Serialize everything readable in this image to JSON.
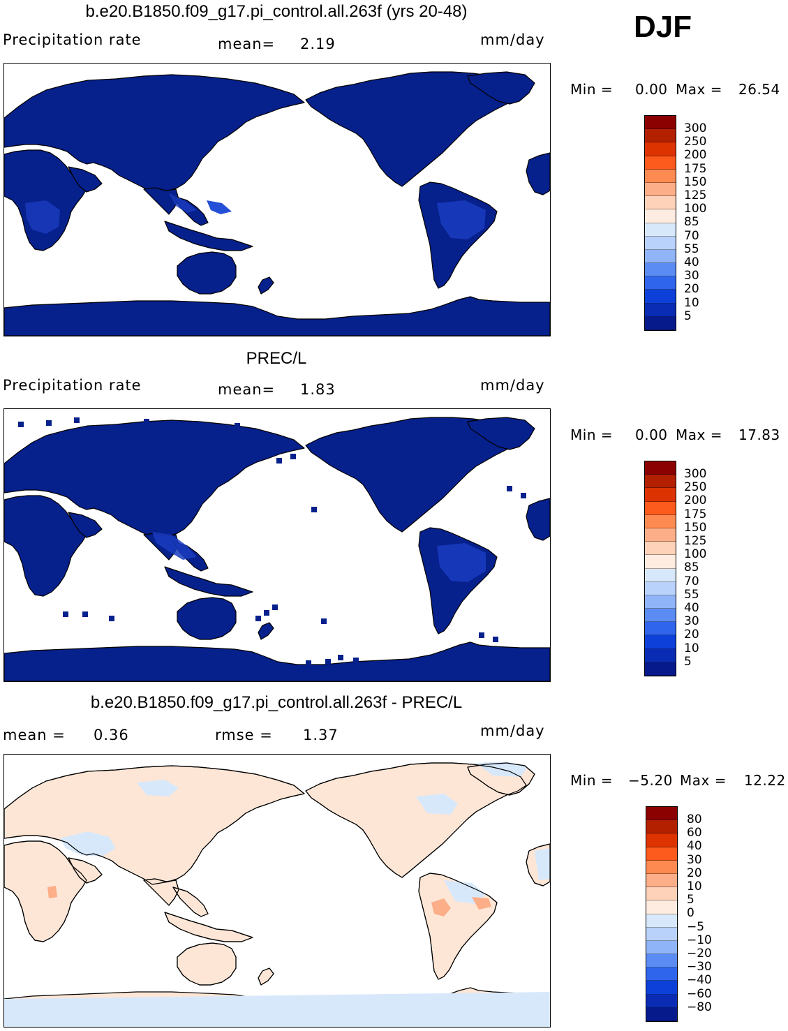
{
  "season": "DJF",
  "panels": [
    {
      "title": "b.e20.B1850.f09_g17.pi_control.all.263f (yrs 20-48)",
      "left_label": "Precipitation  rate",
      "mean_label": "mean=",
      "mean_value": "2.19",
      "units": "mm/day",
      "min_label": "Min  =",
      "min_value": "0.00",
      "max_label": "Max  =",
      "max_value": "26.54",
      "colorbar_labels": [
        "300",
        "250",
        "200",
        "175",
        "150",
        "125",
        "100",
        "85",
        "70",
        "55",
        "40",
        "30",
        "20",
        "10",
        "5"
      ],
      "colorbar_colors": [
        "#8b0000",
        "#b22000",
        "#dd3300",
        "#fd5a1e",
        "#fd8a50",
        "#fcae88",
        "#fdd2b8",
        "#ffece0",
        "#d8e8fb",
        "#b8d2fb",
        "#90b4f8",
        "#5a8cf4",
        "#2f64ec",
        "#0d40d8",
        "#0a2cb4",
        "#061a8c"
      ],
      "fill_color": "#06208c",
      "map_style": "smooth"
    },
    {
      "title": "PREC/L",
      "left_label": "Precipitation  rate",
      "mean_label": "mean=",
      "mean_value": "1.83",
      "units": "mm/day",
      "min_label": "Min  =",
      "min_value": "0.00",
      "max_label": "Max  =",
      "max_value": "17.83",
      "colorbar_labels": [
        "300",
        "250",
        "200",
        "175",
        "150",
        "125",
        "100",
        "85",
        "70",
        "55",
        "40",
        "30",
        "20",
        "10",
        "5"
      ],
      "colorbar_colors": [
        "#8b0000",
        "#b22000",
        "#dd3300",
        "#fd5a1e",
        "#fd8a50",
        "#fcae88",
        "#fdd2b8",
        "#ffece0",
        "#d8e8fb",
        "#b8d2fb",
        "#90b4f8",
        "#5a8cf4",
        "#2f64ec",
        "#0d40d8",
        "#0a2cb4",
        "#061a8c"
      ],
      "fill_color": "#06208c",
      "map_style": "blocky"
    },
    {
      "title": "b.e20.B1850.f09_g17.pi_control.all.263f - PREC/L",
      "left_label": "mean  =",
      "mean_label": "rmse  =",
      "left_value": "0.36",
      "mean_value": "1.37",
      "units": "mm/day",
      "min_label": "Min  =",
      "min_value": "−5.20",
      "max_label": "Max  =",
      "max_value": "12.22",
      "colorbar_labels": [
        "80",
        "60",
        "40",
        "30",
        "20",
        "10",
        "5",
        "0",
        "−5",
        "−10",
        "−20",
        "−30",
        "−40",
        "−60",
        "−80"
      ],
      "colorbar_colors": [
        "#8b0000",
        "#b22000",
        "#dd3300",
        "#fd5a1e",
        "#fd8a50",
        "#fcae88",
        "#fdd2b8",
        "#ffece0",
        "#d8e8fb",
        "#b8d2fb",
        "#90b4f8",
        "#5a8cf4",
        "#2f64ec",
        "#0d40d8",
        "#0a2cb4",
        "#061a8c"
      ],
      "fill_color": "#fde6d6",
      "map_style": "diff"
    }
  ]
}
